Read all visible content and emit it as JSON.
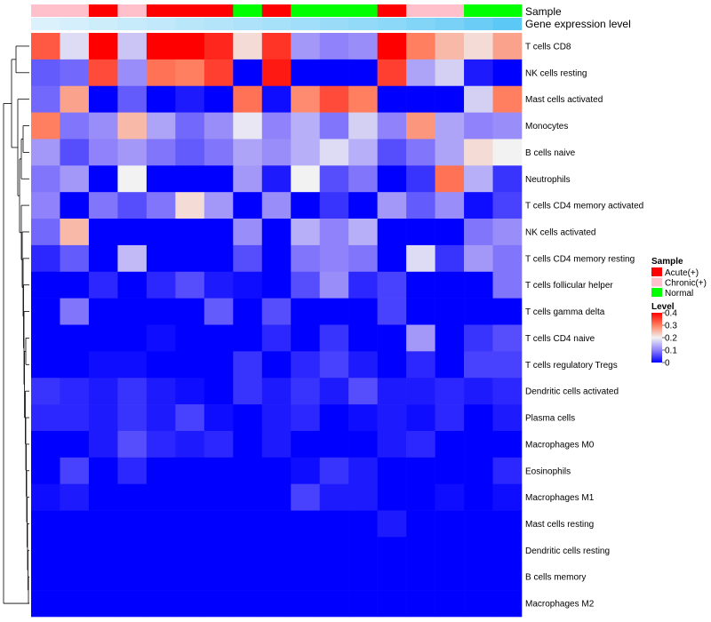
{
  "chart_data": {
    "type": "heatmap",
    "title": "",
    "annotation_labels": {
      "sample": "Sample",
      "expression": "Gene expression level"
    },
    "rows": [
      "T cells CD8",
      "NK cells resting",
      "Mast cells activated",
      "Monocytes",
      "B cells naive",
      "Neutrophils",
      "T cells CD4 memory activated",
      "NK cells activated",
      "T cells CD4 memory resting",
      "T cells follicular helper",
      "T cells gamma delta",
      "T cells CD4 naive",
      "T cells regulatory  Tregs",
      "Dendritic cells activated",
      "Plasma cells",
      "Macrophages M0",
      "Eosinophils",
      "Macrophages M1",
      "Mast cells resting",
      "Dendritic cells resting",
      "B cells memory",
      "Macrophages M2"
    ],
    "sample_groups": [
      "Chronic(+)",
      "Chronic(+)",
      "Acute(+)",
      "Chronic(+)",
      "Acute(+)",
      "Acute(+)",
      "Acute(+)",
      "Normal",
      "Acute(+)",
      "Normal",
      "Normal",
      "Normal",
      "Acute(+)",
      "Chronic(+)",
      "Chronic(+)",
      "Normal",
      "Normal"
    ],
    "expression_level": [
      0.05,
      0.08,
      0.12,
      0.15,
      0.18,
      0.22,
      0.25,
      0.28,
      0.32,
      0.35,
      0.38,
      0.42,
      0.45,
      0.5,
      0.55,
      0.62,
      0.7
    ],
    "values": [
      [
        0.33,
        0.18,
        0.4,
        0.16,
        0.4,
        0.4,
        0.37,
        0.22,
        0.36,
        0.12,
        0.1,
        0.11,
        0.4,
        0.3,
        0.25,
        0.22,
        0.27
      ],
      [
        0.07,
        0.08,
        0.34,
        0.11,
        0.31,
        0.3,
        0.35,
        0.0,
        0.38,
        0.0,
        0.0,
        0.0,
        0.35,
        0.13,
        0.17,
        0.02,
        0.0
      ],
      [
        0.08,
        0.27,
        0.0,
        0.07,
        0.0,
        0.02,
        0.0,
        0.31,
        0.01,
        0.29,
        0.34,
        0.3,
        0.0,
        0.0,
        0.0,
        0.17,
        0.3
      ],
      [
        0.3,
        0.09,
        0.11,
        0.25,
        0.13,
        0.08,
        0.11,
        0.19,
        0.1,
        0.14,
        0.09,
        0.17,
        0.1,
        0.28,
        0.13,
        0.1,
        0.11
      ],
      [
        0.12,
        0.06,
        0.1,
        0.12,
        0.09,
        0.07,
        0.09,
        0.13,
        0.11,
        0.14,
        0.18,
        0.14,
        0.06,
        0.09,
        0.13,
        0.22,
        0.2
      ],
      [
        0.09,
        0.12,
        0.0,
        0.2,
        0.0,
        0.0,
        0.0,
        0.12,
        0.02,
        0.2,
        0.06,
        0.09,
        0.0,
        0.04,
        0.31,
        0.14,
        0.04
      ],
      [
        0.1,
        0.0,
        0.09,
        0.06,
        0.09,
        0.22,
        0.12,
        0.0,
        0.11,
        0.0,
        0.04,
        0.0,
        0.12,
        0.07,
        0.11,
        0.01,
        0.05
      ],
      [
        0.08,
        0.25,
        0.0,
        0.0,
        0.0,
        0.0,
        0.0,
        0.11,
        0.0,
        0.14,
        0.1,
        0.14,
        0.0,
        0.0,
        0.0,
        0.09,
        0.11
      ],
      [
        0.03,
        0.07,
        0.0,
        0.15,
        0.0,
        0.0,
        0.0,
        0.06,
        0.0,
        0.09,
        0.1,
        0.09,
        0.0,
        0.18,
        0.04,
        0.12,
        0.09
      ],
      [
        0.0,
        0.0,
        0.03,
        0.0,
        0.03,
        0.06,
        0.02,
        0.01,
        0.0,
        0.06,
        0.11,
        0.03,
        0.05,
        0.0,
        0.0,
        0.0,
        0.09
      ],
      [
        0.0,
        0.09,
        0.0,
        0.0,
        0.0,
        0.0,
        0.07,
        0.0,
        0.06,
        0.0,
        0.0,
        0.0,
        0.05,
        0.0,
        0.0,
        0.0,
        0.0
      ],
      [
        0.0,
        0.0,
        0.0,
        0.0,
        0.01,
        0.0,
        0.0,
        0.0,
        0.03,
        0.0,
        0.04,
        0.0,
        0.0,
        0.12,
        0.0,
        0.04,
        0.06
      ],
      [
        0.0,
        0.0,
        0.01,
        0.01,
        0.0,
        0.0,
        0.0,
        0.04,
        0.0,
        0.03,
        0.05,
        0.02,
        0.0,
        0.03,
        0.0,
        0.05,
        0.05
      ],
      [
        0.04,
        0.03,
        0.02,
        0.04,
        0.02,
        0.01,
        0.0,
        0.04,
        0.02,
        0.04,
        0.02,
        0.06,
        0.02,
        0.02,
        0.03,
        0.02,
        0.03
      ],
      [
        0.03,
        0.03,
        0.02,
        0.04,
        0.02,
        0.05,
        0.01,
        0.0,
        0.02,
        0.03,
        0.0,
        0.01,
        0.02,
        0.01,
        0.03,
        0.0,
        0.02
      ],
      [
        0.0,
        0.0,
        0.02,
        0.06,
        0.03,
        0.02,
        0.03,
        0.0,
        0.02,
        0.0,
        0.0,
        0.0,
        0.02,
        0.03,
        0.0,
        0.0,
        0.0
      ],
      [
        0.0,
        0.05,
        0.0,
        0.03,
        0.0,
        0.0,
        0.0,
        0.0,
        0.0,
        0.01,
        0.04,
        0.02,
        0.0,
        0.0,
        0.0,
        0.0,
        0.03
      ],
      [
        0.01,
        0.02,
        0.0,
        0.0,
        0.0,
        0.0,
        0.0,
        0.0,
        0.0,
        0.05,
        0.02,
        0.02,
        0.0,
        0.0,
        0.01,
        0.0,
        0.01
      ],
      [
        0.0,
        0.0,
        0.0,
        0.0,
        0.0,
        0.0,
        0.0,
        0.0,
        0.0,
        0.0,
        0.0,
        0.0,
        0.02,
        0.0,
        0.0,
        0.0,
        0.0
      ],
      [
        0.0,
        0.0,
        0.0,
        0.0,
        0.0,
        0.0,
        0.0,
        0.0,
        0.0,
        0.0,
        0.0,
        0.0,
        0.0,
        0.0,
        0.0,
        0.0,
        0.0
      ],
      [
        0.0,
        0.0,
        0.0,
        0.0,
        0.0,
        0.0,
        0.0,
        0.0,
        0.0,
        0.0,
        0.0,
        0.0,
        0.0,
        0.0,
        0.0,
        0.0,
        0.0
      ],
      [
        0.0,
        0.0,
        0.0,
        0.0,
        0.0,
        0.0,
        0.0,
        0.0,
        0.0,
        0.0,
        0.0,
        0.0,
        0.0,
        0.0,
        0.0,
        0.0,
        0.0
      ]
    ],
    "color_scale": {
      "stops": [
        0,
        0.1,
        0.2,
        0.3,
        0.4
      ],
      "colors": [
        "#0000ff",
        "#8f82fa",
        "#f2f2f2",
        "#ff7f60",
        "#ff0000"
      ]
    },
    "legend": {
      "sample": {
        "title": "Sample",
        "items": [
          {
            "label": "Acute(+)",
            "color": "#ff0000"
          },
          {
            "label": "Chronic(+)",
            "color": "#ffc0cb"
          },
          {
            "label": "Normal",
            "color": "#00ff00"
          }
        ]
      },
      "level": {
        "title": "Level",
        "ticks": [
          "0.4",
          "0.3",
          "0.2",
          "0.1",
          "0"
        ]
      },
      "expression_colors": [
        "#dbf1fc",
        "#5bc8f5"
      ]
    }
  }
}
